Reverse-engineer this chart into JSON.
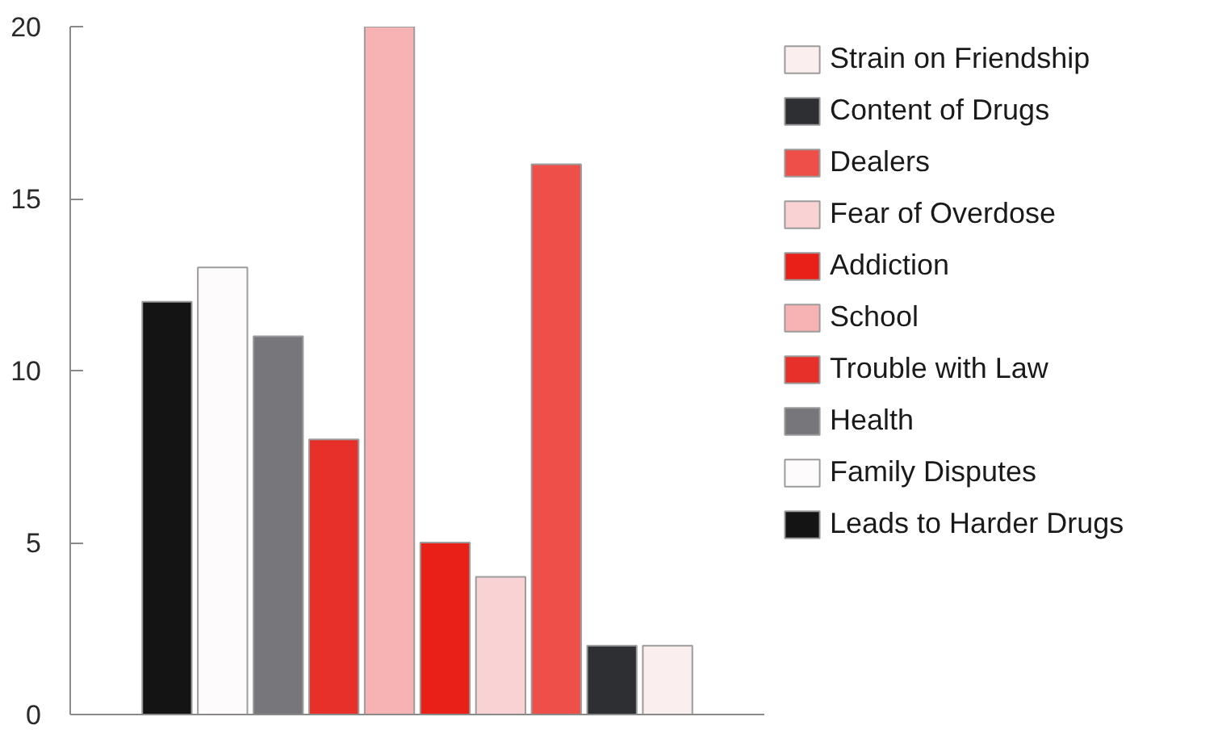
{
  "chart_data": {
    "type": "bar",
    "categories": [
      null
    ],
    "series": [
      {
        "name": "Leads to Harder Drugs",
        "color": "#141414",
        "values": [
          12
        ]
      },
      {
        "name": "Family Disputes",
        "color": "#fdfbfb",
        "values": [
          13
        ]
      },
      {
        "name": "Health",
        "color": "#77767b",
        "values": [
          11
        ]
      },
      {
        "name": "Trouble with Law",
        "color": "#e8302a",
        "values": [
          8
        ]
      },
      {
        "name": "School",
        "color": "#f7b3b3",
        "values": [
          20
        ]
      },
      {
        "name": "Addiction",
        "color": "#e82018",
        "values": [
          5
        ]
      },
      {
        "name": "Fear of Overdose",
        "color": "#f9d3d3",
        "values": [
          4
        ]
      },
      {
        "name": "Dealers",
        "color": "#ee4f48",
        "values": [
          16
        ]
      },
      {
        "name": "Content of Drugs",
        "color": "#2e2f33",
        "values": [
          2
        ]
      },
      {
        "name": "Strain on Friendship",
        "color": "#fbeeee",
        "values": [
          2
        ]
      }
    ],
    "ylim": [
      0,
      20
    ],
    "yticks": [
      0,
      5,
      10,
      15,
      20
    ],
    "grid": false,
    "legend": "right"
  }
}
